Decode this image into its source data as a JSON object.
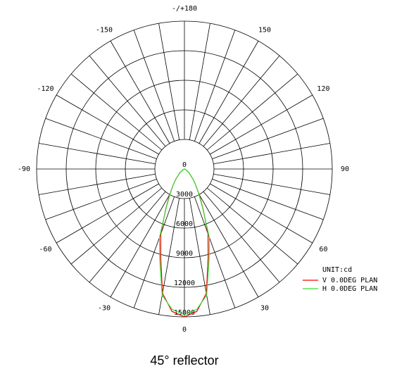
{
  "chart_data": {
    "type": "polar",
    "caption": "45° reflector",
    "unit_label": "UNIT:cd",
    "rlim": [
      0,
      15000
    ],
    "rticks": [
      0,
      3000,
      6000,
      9000,
      12000,
      15000
    ],
    "angle_ticks": [
      0,
      30,
      60,
      90,
      120,
      150,
      {
        "value": 180,
        "label": "-/+180"
      },
      -150,
      -120,
      -90,
      -60,
      -30
    ],
    "x": [
      -90,
      -80,
      -70,
      -60,
      -50,
      -40,
      -35,
      -30,
      -25,
      -20,
      -15,
      -10,
      -5,
      0,
      5,
      10,
      15,
      20,
      25,
      30,
      35,
      40,
      50,
      60,
      70,
      80,
      90
    ],
    "series": [
      {
        "name": "V 0.0DEG PLAN",
        "color": "#ff0000",
        "values": [
          0,
          0,
          50,
          200,
          600,
          1400,
          2000,
          3000,
          4500,
          7000,
          9300,
          12800,
          14500,
          15000,
          14500,
          12800,
          9300,
          7000,
          4500,
          3000,
          2000,
          1400,
          600,
          200,
          50,
          0,
          0
        ]
      },
      {
        "name": "H 0.0DEG PLAN",
        "color": "#33dd33",
        "values": [
          0,
          0,
          50,
          200,
          600,
          1400,
          2000,
          2900,
          4400,
          7400,
          9650,
          13000,
          14300,
          14800,
          14300,
          13000,
          9650,
          7400,
          4400,
          2900,
          2000,
          1400,
          600,
          200,
          50,
          0,
          0
        ]
      }
    ]
  }
}
